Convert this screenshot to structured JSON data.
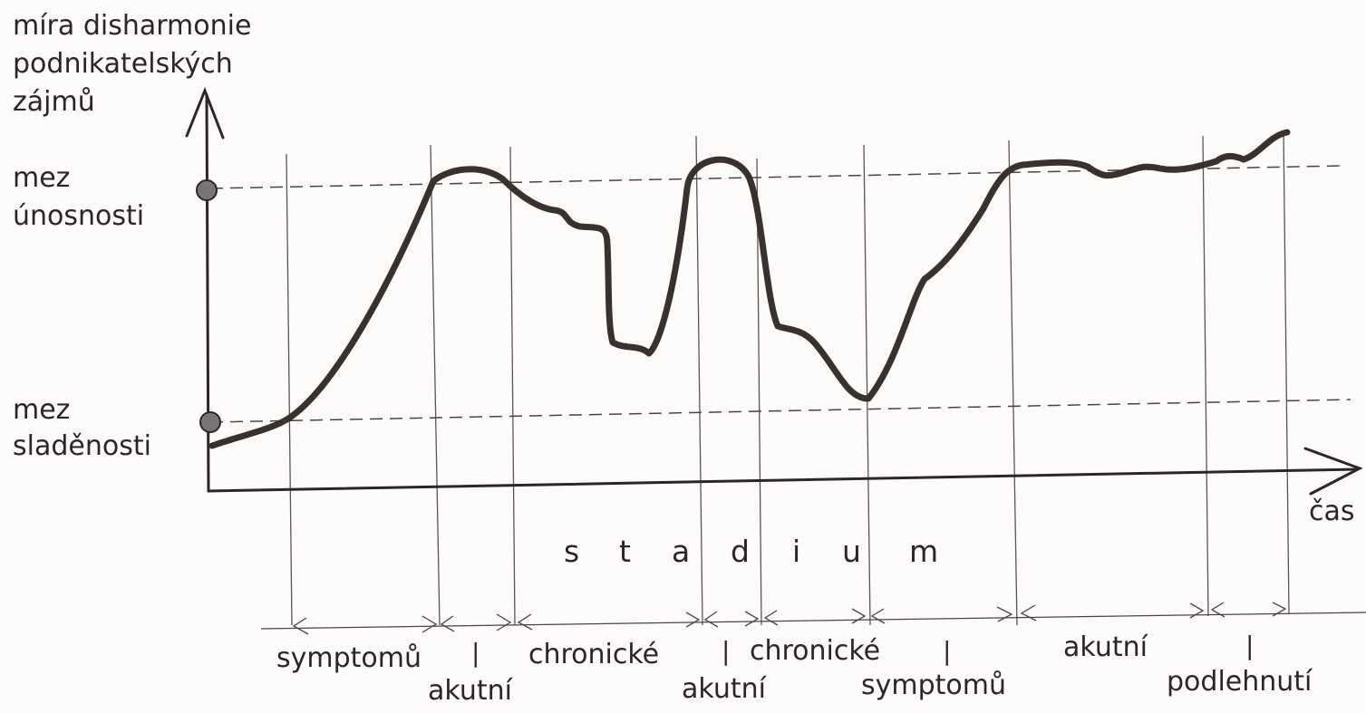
{
  "diagram": {
    "y_axis_title": [
      "míra disharmonie",
      "podnikatelských",
      "zájmů"
    ],
    "x_axis_label": "čas",
    "upper_limit_label": [
      "mez",
      "únosnosti"
    ],
    "lower_limit_label": [
      "mez",
      "sladěnosti"
    ],
    "stadium_letters": [
      "s",
      "t",
      "a",
      "d",
      "i",
      "u",
      "m"
    ],
    "stage_labels": {
      "symptomu_1": "symptomů",
      "akutni_1": "akutní",
      "chronicke_1": "chronické",
      "akutni_2": "akutní",
      "chronicke_2": "chronické",
      "symptomu_2": "symptomů",
      "akutni_3": "akutní",
      "podlehnuti": "podlehnutí"
    },
    "separator": "|",
    "colors": {
      "ink": "#2b2727",
      "curve": "#3a3030",
      "marker": "#7a7474",
      "background": "#fdfcfa"
    }
  }
}
